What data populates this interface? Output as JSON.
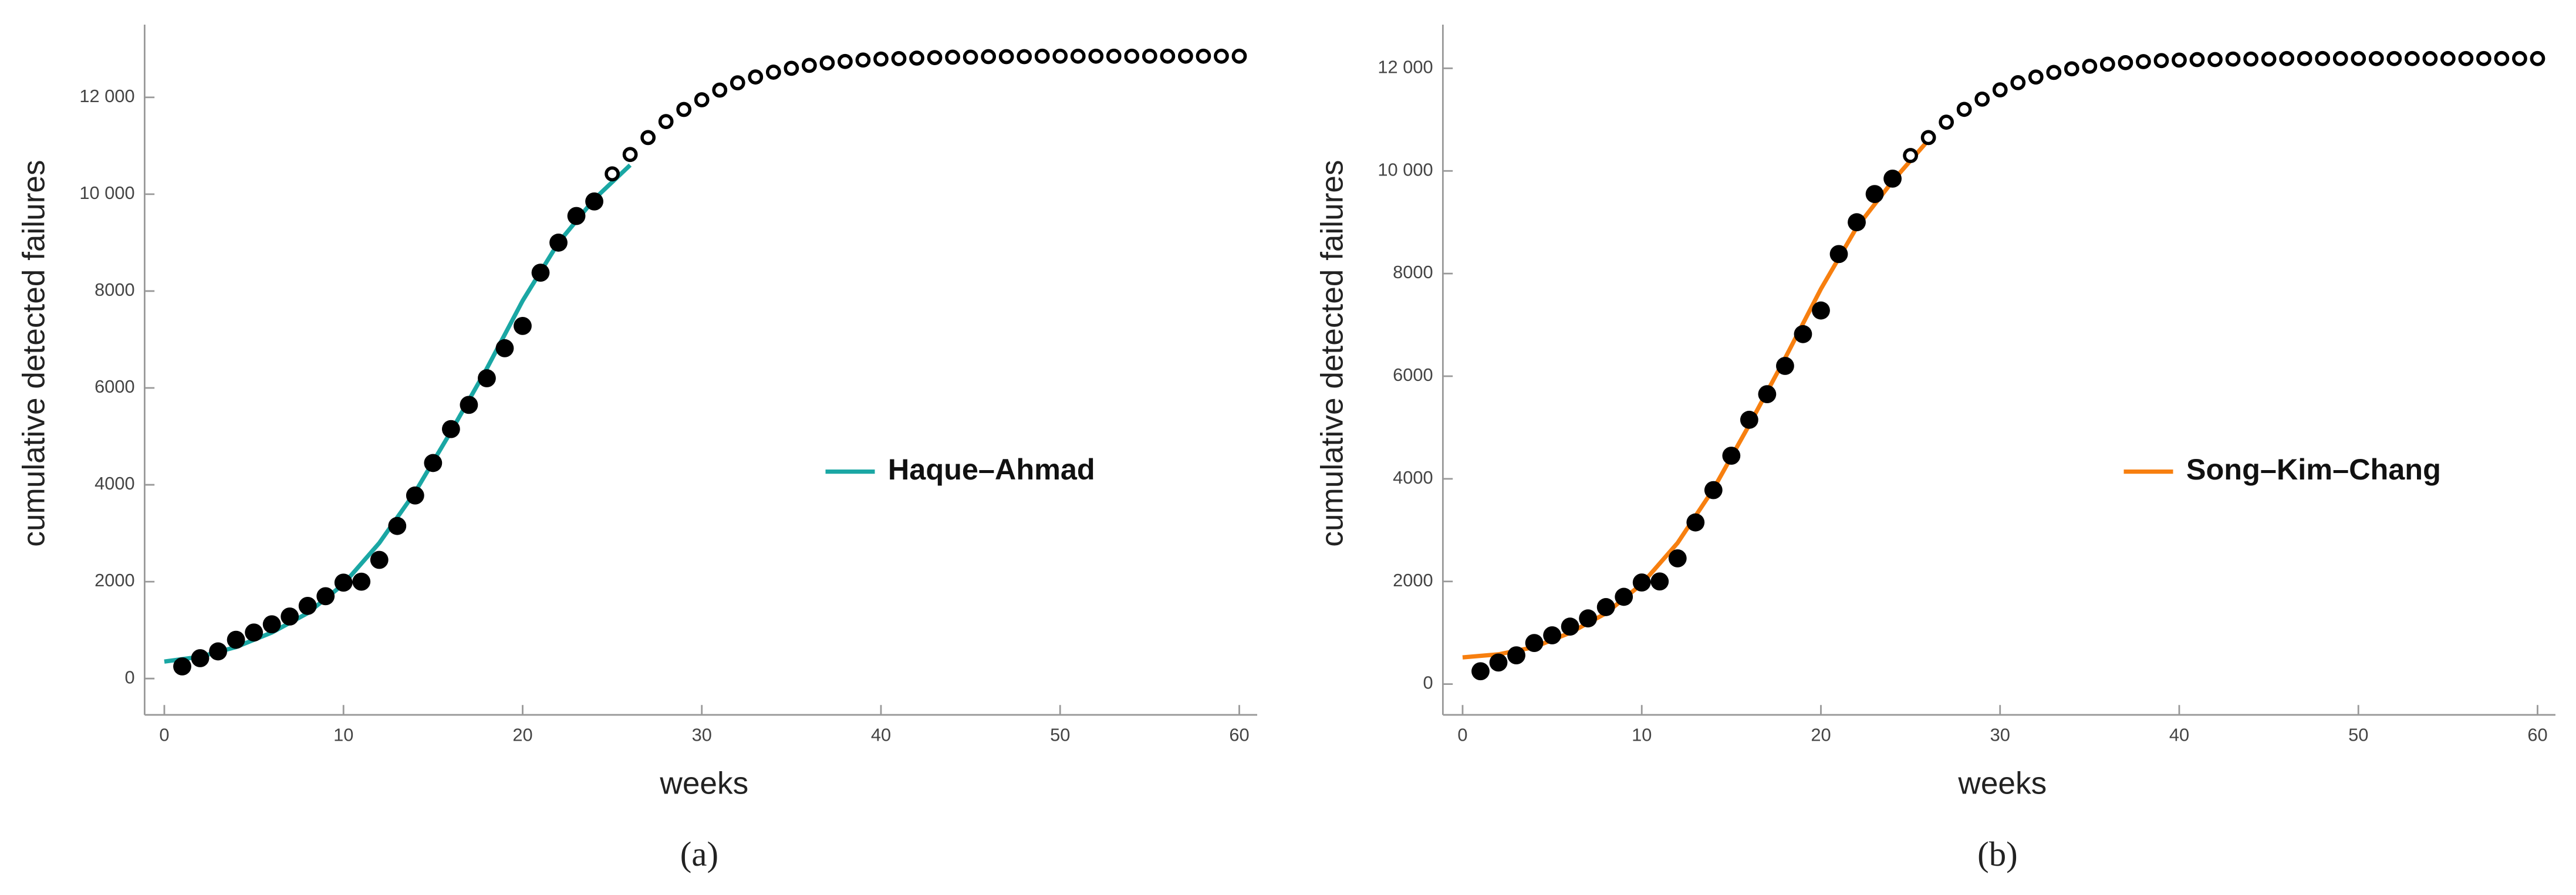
{
  "chart_data": [
    {
      "type": "line",
      "caption": "(a)",
      "xlabel": "weeks",
      "ylabel": "cumulative detected failures",
      "xlim": [
        -1.1,
        61
      ],
      "ylim": [
        -750,
        13500
      ],
      "xticks": [
        0,
        10,
        20,
        30,
        40,
        50,
        60
      ],
      "yticks": [
        0,
        2000,
        4000,
        6000,
        8000,
        {
          "value": 10000,
          "label": "10 000"
        },
        {
          "value": 12000,
          "label": "12 000"
        }
      ],
      "legend": "right",
      "series": [
        {
          "marker": "filled",
          "color": "#000000",
          "x": [
            1,
            2,
            3,
            4,
            5,
            6,
            7,
            8,
            9,
            10,
            11,
            12,
            13,
            14,
            15,
            16,
            17,
            18,
            19,
            20,
            21,
            22,
            23,
            24
          ],
          "values": [
            250,
            420,
            560,
            800,
            950,
            1120,
            1280,
            1500,
            1700,
            1980,
            2000,
            2450,
            3150,
            3780,
            4450,
            5150,
            5650,
            6200,
            6820,
            7280,
            8380,
            9000,
            9550,
            9850
          ]
        },
        {
          "marker": "open",
          "color": "#000000",
          "x": [
            25,
            26,
            27,
            28,
            29,
            30,
            31,
            32,
            33,
            34,
            35,
            36,
            37,
            38,
            39,
            40,
            41,
            42,
            43,
            44,
            45,
            46,
            47,
            48,
            49,
            50,
            51,
            52,
            53,
            54,
            55,
            56,
            57,
            58,
            59,
            60
          ],
          "values": [
            10420,
            10820,
            11170,
            11500,
            11750,
            11950,
            12150,
            12300,
            12420,
            12520,
            12600,
            12660,
            12710,
            12740,
            12770,
            12790,
            12800,
            12810,
            12820,
            12830,
            12830,
            12840,
            12840,
            12840,
            12850,
            12850,
            12850,
            12850,
            12850,
            12850,
            12850,
            12850,
            12850,
            12850,
            12850,
            12850
          ]
        },
        {
          "marker": "line",
          "name": "Haque–Ahmad",
          "color": "#1aa7a4",
          "x": [
            0,
            2,
            4,
            6,
            8,
            10,
            12,
            14,
            16,
            18,
            20,
            22,
            24,
            26
          ],
          "values": [
            350,
            450,
            650,
            950,
            1350,
            1950,
            2800,
            3850,
            5100,
            6400,
            7800,
            9000,
            9900,
            10600
          ]
        }
      ]
    },
    {
      "type": "line",
      "caption": "(b)",
      "xlabel": "weeks",
      "ylabel": "cumulative detected failures",
      "xlim": [
        -1.1,
        61
      ],
      "ylim": [
        -600,
        12850
      ],
      "xticks": [
        0,
        10,
        20,
        30,
        40,
        50,
        60
      ],
      "yticks": [
        0,
        2000,
        4000,
        6000,
        8000,
        {
          "value": 10000,
          "label": "10 000"
        },
        {
          "value": 12000,
          "label": "12 000"
        }
      ],
      "legend": "right",
      "series": [
        {
          "marker": "filled",
          "color": "#000000",
          "x": [
            1,
            2,
            3,
            4,
            5,
            6,
            7,
            8,
            9,
            10,
            11,
            12,
            13,
            14,
            15,
            16,
            17,
            18,
            19,
            20,
            21,
            22,
            23,
            24
          ],
          "values": [
            250,
            420,
            560,
            800,
            950,
            1120,
            1280,
            1500,
            1700,
            1980,
            2000,
            2450,
            3150,
            3780,
            4450,
            5150,
            5650,
            6200,
            6820,
            7280,
            8380,
            9000,
            9550,
            9850
          ]
        },
        {
          "marker": "open",
          "color": "#000000",
          "x": [
            25,
            26,
            27,
            28,
            29,
            30,
            31,
            32,
            33,
            34,
            35,
            36,
            37,
            38,
            39,
            40,
            41,
            42,
            43,
            44,
            45,
            46,
            47,
            48,
            49,
            50,
            51,
            52,
            53,
            54,
            55,
            56,
            57,
            58,
            59,
            60
          ],
          "values": [
            10300,
            10650,
            10950,
            11200,
            11400,
            11580,
            11720,
            11830,
            11920,
            11990,
            12040,
            12080,
            12110,
            12130,
            12150,
            12160,
            12170,
            12170,
            12180,
            12180,
            12180,
            12190,
            12190,
            12190,
            12190,
            12190,
            12190,
            12190,
            12190,
            12190,
            12190,
            12190,
            12190,
            12190,
            12190,
            12190
          ]
        },
        {
          "marker": "line",
          "name": "Song–Kim–Chang",
          "color": "#f77f0f",
          "x": [
            0,
            2,
            4,
            6,
            8,
            10,
            12,
            14,
            16,
            18,
            20,
            22,
            24,
            26
          ],
          "values": [
            520,
            580,
            720,
            1000,
            1380,
            1950,
            2750,
            3800,
            5050,
            6350,
            7700,
            8900,
            9800,
            10600
          ]
        }
      ]
    }
  ]
}
